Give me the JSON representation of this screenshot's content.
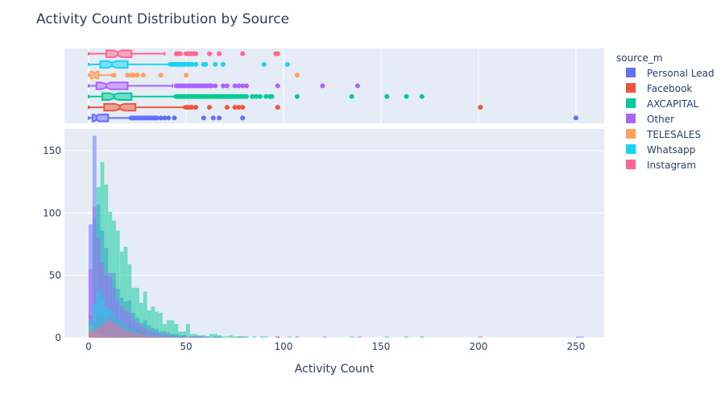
{
  "chart_data": {
    "type": "histogram",
    "title": "Activity Count Distribution by Source",
    "xlabel": "Activity Count",
    "ylabel": "",
    "xlim": [
      -12.4,
      264.5
    ],
    "ylim": [
      0,
      167.5
    ],
    "xticks": [
      0,
      50,
      100,
      150,
      200,
      250
    ],
    "yticks": [
      0,
      50,
      100,
      150
    ],
    "bin_width": 2,
    "barmode": "overlay",
    "opacity": 0.5,
    "marginal": "box",
    "legend": {
      "title": "source_m",
      "placement": "right"
    },
    "series": [
      {
        "name": "Personal Lead",
        "color": "#636efa",
        "counts": [
          91,
          162,
          107,
          86,
          72,
          49,
          52,
          39,
          32,
          29,
          30,
          20,
          16,
          12,
          14,
          10,
          8,
          7,
          5,
          5,
          4,
          3,
          3,
          2,
          2,
          1,
          1,
          1,
          1,
          0,
          1,
          0,
          0,
          1,
          0,
          0,
          0,
          0,
          0,
          1
        ],
        "extra_bins": [
          [
            250,
            1
          ]
        ],
        "box": {
          "lower_fence": 0,
          "q1": 2,
          "median": 4,
          "q3": 10,
          "upper_fence": 21,
          "outliers": [
            22,
            23,
            24,
            25,
            26,
            27,
            28,
            29,
            30,
            31,
            32,
            33,
            34,
            35,
            37,
            39,
            41,
            44,
            59,
            64,
            67,
            79,
            250
          ]
        }
      },
      {
        "name": "Facebook",
        "color": "#EF553B",
        "counts": [
          18,
          12,
          18,
          17,
          15,
          17,
          19,
          15,
          12,
          10,
          10,
          8,
          6,
          5,
          4,
          3,
          3,
          2,
          2,
          1,
          1,
          1,
          1,
          0,
          1,
          0,
          0,
          1,
          0,
          0,
          1,
          0,
          0,
          0,
          0,
          0,
          0,
          0,
          1,
          0,
          0,
          0,
          0,
          0,
          0,
          0,
          0,
          0,
          1
        ],
        "extra_bins": [
          [
            200,
            1
          ]
        ],
        "box": {
          "lower_fence": 0,
          "q1": 8,
          "median": 16,
          "q3": 24,
          "upper_fence": 49,
          "outliers": [
            50,
            51,
            52,
            53,
            55,
            62,
            71,
            75,
            77,
            79,
            97,
            201
          ]
        }
      },
      {
        "name": "AXCAPITAL",
        "color": "#00cc96",
        "counts": [
          10,
          95,
          121,
          141,
          123,
          101,
          94,
          86,
          69,
          73,
          59,
          40,
          40,
          28,
          37,
          22,
          25,
          21,
          20,
          11,
          14,
          14,
          11,
          5,
          5,
          11,
          3,
          3,
          2,
          2,
          1,
          3,
          3,
          2,
          1,
          1,
          2,
          1,
          1,
          1,
          1,
          0,
          1,
          0,
          1,
          0,
          0,
          0,
          0,
          0,
          0,
          0,
          0,
          1
        ],
        "extra_bins": [
          [
            134,
            1
          ],
          [
            152,
            1
          ],
          [
            162,
            1
          ],
          [
            170,
            1
          ]
        ],
        "box": {
          "lower_fence": 0,
          "q1": 7,
          "median": 13,
          "q3": 22,
          "upper_fence": 44,
          "outliers": [
            45,
            46,
            47,
            48,
            49,
            50,
            51,
            52,
            53,
            54,
            55,
            56,
            57,
            58,
            59,
            60,
            61,
            62,
            63,
            64,
            65,
            66,
            67,
            68,
            69,
            70,
            71,
            72,
            73,
            74,
            75,
            76,
            77,
            78,
            79,
            80,
            81,
            84,
            86,
            88,
            91,
            93,
            94,
            107,
            135,
            153,
            163,
            171
          ]
        }
      },
      {
        "name": "Other",
        "color": "#ab63fa",
        "counts": [
          55,
          105,
          80,
          60,
          50,
          52,
          40,
          30,
          25,
          22,
          20,
          15,
          12,
          10,
          8,
          6,
          5,
          4,
          3,
          3,
          2,
          2,
          1,
          1,
          2,
          1,
          1,
          1,
          1,
          1,
          1,
          0,
          1,
          0,
          0,
          0,
          0,
          0,
          0,
          0,
          0,
          0,
          0,
          0,
          0,
          0,
          0,
          0,
          1
        ],
        "extra_bins": [
          [
            120,
            1
          ],
          [
            138,
            1
          ],
          [
            252,
            1
          ]
        ],
        "box": {
          "lower_fence": 0,
          "q1": 4,
          "median": 9,
          "q3": 20,
          "upper_fence": 43,
          "outliers": [
            45,
            46,
            47,
            48,
            49,
            50,
            51,
            52,
            53,
            54,
            55,
            56,
            57,
            58,
            59,
            60,
            61,
            62,
            63,
            65,
            69,
            71,
            75,
            77,
            79,
            81,
            97,
            120,
            138
          ]
        }
      },
      {
        "name": "TELESALES",
        "color": "#FFA15A",
        "counts": [
          10,
          5,
          3,
          2,
          1,
          1,
          1,
          0,
          0,
          0,
          1,
          1,
          1,
          1,
          0,
          0,
          0,
          0,
          1,
          0,
          0,
          0,
          0,
          0,
          0,
          1
        ],
        "extra_bins": [
          [
            106,
            1
          ]
        ],
        "box": {
          "lower_fence": 0,
          "q1": 1,
          "median": 3,
          "q3": 5,
          "upper_fence": 12,
          "outliers": [
            13,
            20,
            22,
            23,
            25,
            28,
            37,
            50,
            107
          ]
        }
      },
      {
        "name": "Whatsapp",
        "color": "#19d3f3",
        "counts": [
          15,
          27,
          38,
          32,
          25,
          23,
          20,
          15,
          12,
          10,
          8,
          8,
          5,
          4,
          3,
          3,
          2,
          2,
          2,
          1,
          1,
          1,
          1,
          0,
          1,
          0,
          0,
          0,
          0,
          0,
          1
        ],
        "extra_bins": [
          [
            90,
            1
          ],
          [
            102,
            1
          ]
        ],
        "box": {
          "lower_fence": 0,
          "q1": 6,
          "median": 12,
          "q3": 20,
          "upper_fence": 41,
          "outliers": [
            42,
            43,
            44,
            45,
            46,
            47,
            48,
            49,
            50,
            51,
            52,
            53,
            55,
            59,
            60,
            65,
            69,
            90,
            102
          ]
        }
      },
      {
        "name": "Instagram",
        "color": "#FF6692",
        "counts": [
          5,
          5,
          8,
          10,
          12,
          15,
          12,
          10,
          8,
          6,
          5,
          4,
          3,
          3,
          2,
          2,
          1,
          1,
          1,
          1,
          0,
          1,
          0,
          1,
          0,
          0,
          0,
          0,
          0,
          0,
          0,
          0,
          0,
          0,
          0,
          0,
          0,
          0,
          0,
          0,
          0,
          0,
          0,
          0,
          0,
          0,
          0,
          0,
          1
        ],
        "extra_bins": [],
        "box": {
          "lower_fence": 0,
          "q1": 9,
          "median": 15,
          "q3": 22,
          "upper_fence": 39,
          "outliers": [
            45,
            46,
            47,
            50,
            51,
            52,
            53,
            54,
            55,
            62,
            67,
            79,
            96,
            97
          ]
        }
      }
    ]
  }
}
